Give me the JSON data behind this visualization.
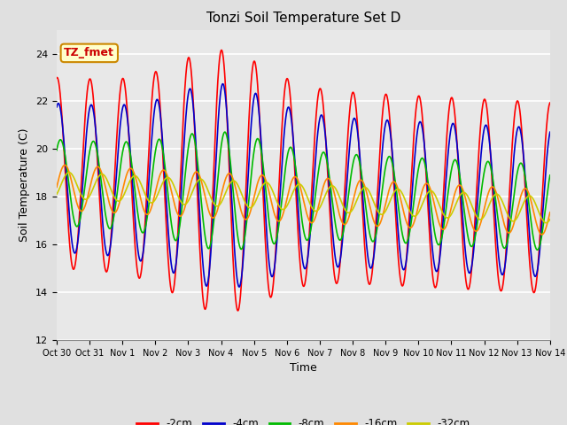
{
  "title": "Tonzi Soil Temperature Set D",
  "xlabel": "Time",
  "ylabel": "Soil Temperature (C)",
  "ylim": [
    12,
    25
  ],
  "yticks": [
    12,
    14,
    16,
    18,
    20,
    22,
    24
  ],
  "annotation_text": "TZ_fmet",
  "annotation_bg": "#ffffcc",
  "annotation_border": "#cc8800",
  "annotation_text_color": "#cc0000",
  "bg_color": "#e0e0e0",
  "plot_bg": "#e8e8e8",
  "series_colors": [
    "#ff0000",
    "#0000cc",
    "#00bb00",
    "#ff8800",
    "#cccc00"
  ],
  "series_labels": [
    "-2cm",
    "-4cm",
    "-8cm",
    "-16cm",
    "-32cm"
  ],
  "line_width": 1.2,
  "n_days": 15,
  "n_points": 1440
}
